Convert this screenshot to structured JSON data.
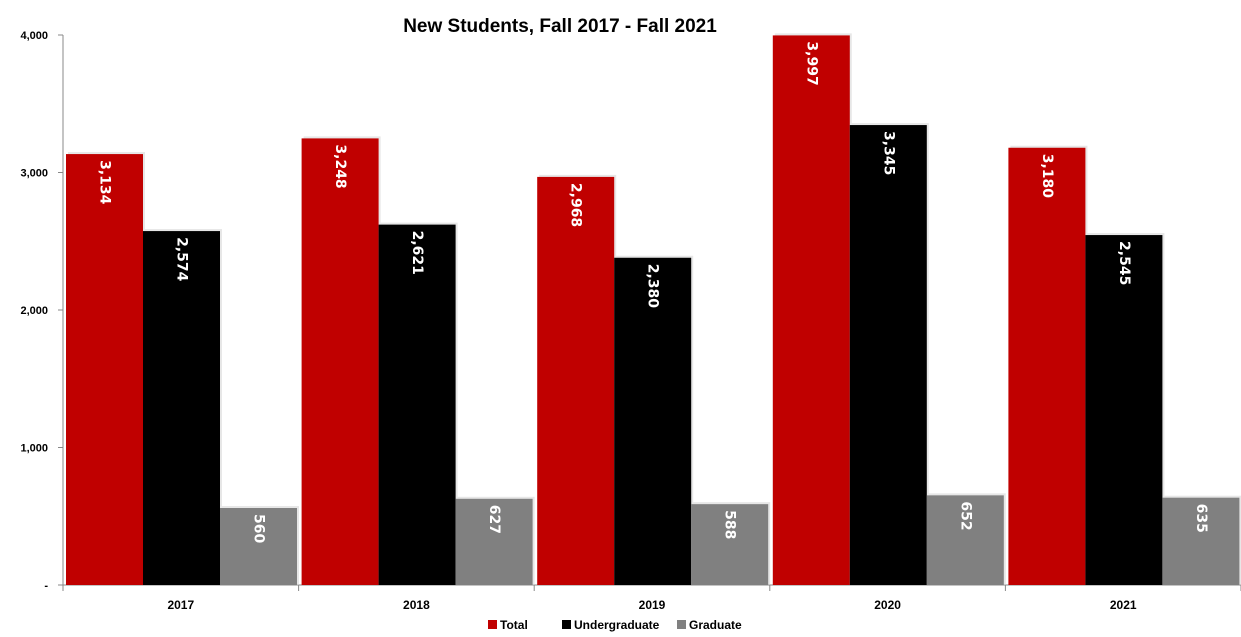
{
  "chart_data": {
    "type": "bar",
    "title": "New Students, Fall 2017 - Fall 2021",
    "categories": [
      "2017",
      "2018",
      "2019",
      "2020",
      "2021"
    ],
    "series": [
      {
        "name": "Total",
        "color": "#c00000",
        "values": [
          3134,
          3248,
          2968,
          3997,
          3180
        ],
        "labels": [
          "3,134",
          "3,248",
          "2,968",
          "3,997",
          "3,180"
        ]
      },
      {
        "name": "Undergraduate",
        "color": "#000000",
        "values": [
          2574,
          2621,
          2380,
          3345,
          2545
        ],
        "labels": [
          "2,574",
          "2,621",
          "2,380",
          "3,345",
          "2,545"
        ]
      },
      {
        "name": "Graduate",
        "color": "#808080",
        "values": [
          560,
          627,
          588,
          652,
          635
        ],
        "labels": [
          "560",
          "627",
          "588",
          "652",
          "635"
        ]
      }
    ],
    "ylim": [
      0,
      4000
    ],
    "yticks": [
      0,
      1000,
      2000,
      3000,
      4000
    ],
    "ytick_labels": [
      "-",
      "1,000",
      "2,000",
      "3,000",
      "4,000"
    ],
    "xlabel": "",
    "ylabel": "",
    "grid": false,
    "legend": "bottom"
  }
}
